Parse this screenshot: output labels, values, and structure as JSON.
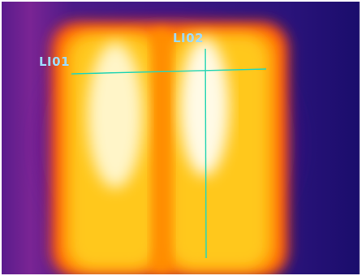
{
  "thermal_image": {
    "palette": {
      "background_dark": "#1f0f70",
      "background_mid": "#3a1a8a",
      "magenta": "#a01e9a",
      "red_orange": "#ff3c14",
      "orange": "#ff8c00",
      "yellow": "#ffd21e",
      "hot_white": "#fffae6"
    },
    "line_color": "#2bd6b4",
    "label_color": "#9fdcff"
  },
  "measurement_lines": [
    {
      "label": "LI01",
      "orientation": "horizontal"
    },
    {
      "label": "LI02",
      "orientation": "vertical"
    }
  ]
}
